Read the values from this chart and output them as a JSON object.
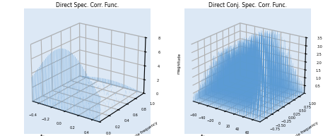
{
  "title1": "Direct Spec. Corr. Func.",
  "title2": "Direct Conj. Spec. Corr. Func.",
  "xlabel": "frequency",
  "ylabel": "Cycle frequency",
  "zlabel": "magnitude",
  "plot1": {
    "freq_range": [
      -0.5,
      0.5
    ],
    "cycle_range": [
      0.0,
      1.0
    ],
    "N_freq": 51,
    "N_cycle": 26,
    "zlim": [
      0,
      8
    ],
    "zticks": [
      0,
      2,
      4,
      6,
      8
    ],
    "freq_ticks": [
      -0.4,
      -0.2,
      0.0,
      0.2,
      0.4
    ],
    "cycle_ticks": [
      0.0,
      0.2,
      0.4,
      0.6,
      0.8,
      1.0
    ],
    "line_color": "#5b9bd5",
    "alpha": 0.85,
    "elev": 22,
    "azim": -55
  },
  "plot2": {
    "freq_range": [
      -75,
      75
    ],
    "cycle_range": [
      -1.0,
      1.0
    ],
    "N_freq": 61,
    "N_cycle": 41,
    "zlim": [
      0,
      3.5
    ],
    "zticks": [
      0.5,
      1.0,
      1.5,
      2.0,
      2.5,
      3.0,
      3.5
    ],
    "freq_ticks": [
      -60,
      -40,
      -20,
      0,
      20,
      40,
      60
    ],
    "cycle_ticks": [
      -0.75,
      -0.5,
      -0.25,
      0.0,
      0.25,
      0.5,
      0.75,
      1.0
    ],
    "line_color": "#5b9bd5",
    "alpha": 0.7,
    "elev": 22,
    "azim": -55
  },
  "figure_color": "#ffffff"
}
